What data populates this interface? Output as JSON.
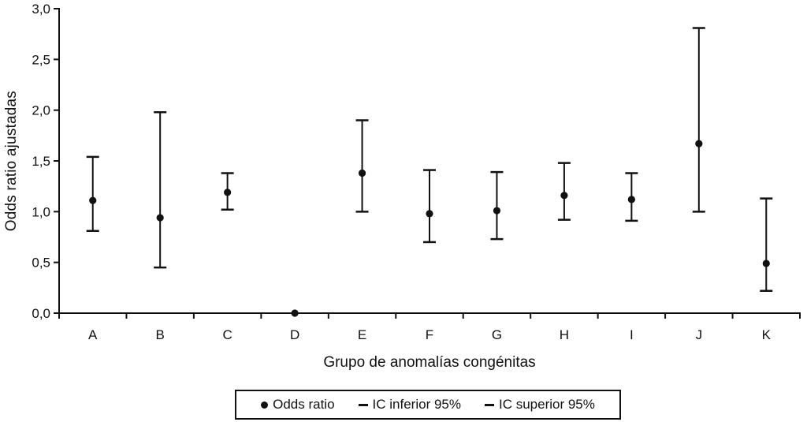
{
  "chart_data": {
    "type": "scatter",
    "subtype": "point-with-error-bars",
    "categories": [
      "A",
      "B",
      "C",
      "D",
      "E",
      "F",
      "G",
      "H",
      "I",
      "J",
      "K"
    ],
    "series": [
      {
        "name": "Odds ratio",
        "values": [
          1.11,
          0.94,
          1.19,
          0.0,
          1.38,
          0.98,
          1.01,
          1.16,
          1.12,
          1.67,
          0.49
        ]
      },
      {
        "name": "IC inferior 95%",
        "values": [
          0.81,
          0.45,
          1.02,
          null,
          1.0,
          0.7,
          0.73,
          0.92,
          0.91,
          1.0,
          0.22
        ]
      },
      {
        "name": "IC superior 95%",
        "values": [
          1.54,
          1.98,
          1.38,
          null,
          1.9,
          1.41,
          1.39,
          1.48,
          1.38,
          2.81,
          1.13
        ]
      }
    ],
    "title": "",
    "xlabel": "Grupo de anomalías congénitas",
    "ylabel": "Odds ratio ajustadas",
    "ylim": [
      0,
      3
    ],
    "ytick_values": [
      0,
      0.5,
      1,
      1.5,
      2,
      2.5,
      3
    ],
    "ytick_labels": [
      "0,0",
      "0,5",
      "1,0",
      "1,5",
      "2,0",
      "2,5",
      "3,0"
    ],
    "grid": false,
    "legend": {
      "position": "bottom",
      "entries": [
        {
          "marker": "dot",
          "label": "Odds ratio"
        },
        {
          "marker": "dash",
          "label": "IC inferior 95%"
        },
        {
          "marker": "dash",
          "label": "IC superior 95%"
        }
      ]
    },
    "colors": {
      "marker": "#111111",
      "background": "#ffffff"
    }
  }
}
